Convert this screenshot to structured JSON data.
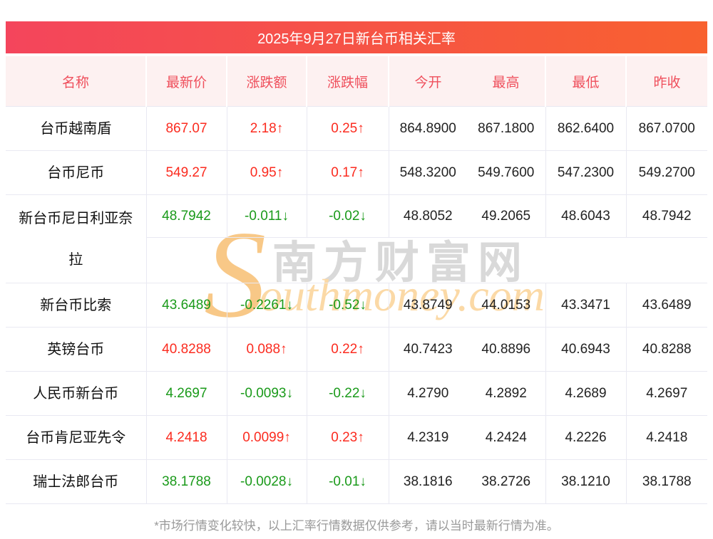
{
  "title": "2025年9月27日新台币相关汇率",
  "table": {
    "headers": [
      "名称",
      "最新价",
      "涨跌额",
      "涨跌幅",
      "今开",
      "最高",
      "最低",
      "昨收"
    ],
    "rows": [
      {
        "name": "台币越南盾",
        "last": "867.07",
        "change": "2.18↑",
        "pct": "0.25↑",
        "open": "864.8900",
        "high": "867.1800",
        "low": "862.6400",
        "prev": "867.0700",
        "trend": "up",
        "tall": false
      },
      {
        "name": "台币尼币",
        "last": "549.27",
        "change": "0.95↑",
        "pct": "0.17↑",
        "open": "548.3200",
        "high": "549.7600",
        "low": "547.2300",
        "prev": "549.2700",
        "trend": "up",
        "tall": false
      },
      {
        "name": "新台币尼日利亚奈拉",
        "last": "48.7942",
        "change": "-0.011↓",
        "pct": "-0.02↓",
        "open": "48.8052",
        "high": "49.2065",
        "low": "48.6043",
        "prev": "48.7942",
        "trend": "down",
        "tall": true
      },
      {
        "name": "新台币比索",
        "last": "43.6489",
        "change": "-0.2261↓",
        "pct": "-0.52↓",
        "open": "43.8749",
        "high": "44.0153",
        "low": "43.3471",
        "prev": "43.6489",
        "trend": "down",
        "tall": false
      },
      {
        "name": "英镑台币",
        "last": "40.8288",
        "change": "0.088↑",
        "pct": "0.22↑",
        "open": "40.7423",
        "high": "40.8896",
        "low": "40.6943",
        "prev": "40.8288",
        "trend": "up",
        "tall": false
      },
      {
        "name": "人民币新台币",
        "last": "4.2697",
        "change": "-0.0093↓",
        "pct": "-0.22↓",
        "open": "4.2790",
        "high": "4.2892",
        "low": "4.2689",
        "prev": "4.2697",
        "trend": "down",
        "tall": false
      },
      {
        "name": "台币肯尼亚先令",
        "last": "4.2418",
        "change": "0.0099↑",
        "pct": "0.23↑",
        "open": "4.2319",
        "high": "4.2424",
        "low": "4.2226",
        "prev": "4.2418",
        "trend": "up",
        "tall": false
      },
      {
        "name": "瑞士法郎台币",
        "last": "38.1788",
        "change": "-0.0028↓",
        "pct": "-0.01↓",
        "open": "38.1816",
        "high": "38.2726",
        "low": "38.1210",
        "prev": "38.1788",
        "trend": "down",
        "tall": false
      }
    ]
  },
  "watermark": {
    "initial": "S",
    "cn": "南方财富网",
    "en": "outhmoney.com"
  },
  "footer": "*市场行情变化较快，以上汇率行情数据仅供参考，请以当时最新行情为准。",
  "colors": {
    "titlebar_gradient_left": "#f4455c",
    "titlebar_gradient_right": "#f8612f",
    "header_bg": "#fdf1f1",
    "header_text": "#ef4f5c",
    "up_red": "#fb2b1f",
    "down_green": "#1a9a1a",
    "body_text": "#222222",
    "border": "#e9e9f2",
    "footer_text": "#999999",
    "watermark_gray": "#d9d9d9",
    "watermark_orange": "#fbd9a6"
  }
}
